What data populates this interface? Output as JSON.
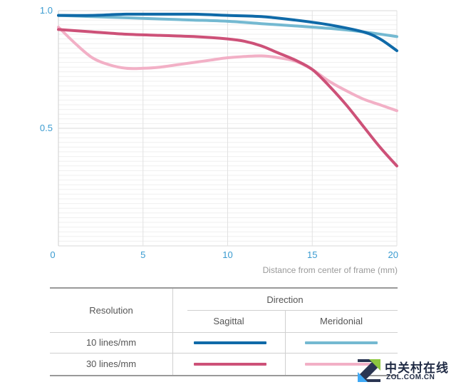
{
  "chart_data": {
    "type": "line",
    "xlabel": "Distance from center of frame (mm)",
    "xlim": [
      0,
      20
    ],
    "ylim": [
      0,
      1.0
    ],
    "x_ticks": [
      "0",
      "5",
      "10",
      "15",
      "20"
    ],
    "y_ticks": [
      "1.0",
      "0.5"
    ],
    "grid": true,
    "series": [
      {
        "name": "10 lines/mm Sagittal",
        "color": "#0f6aa8",
        "x": [
          0,
          2,
          4,
          6,
          8,
          10,
          12,
          14,
          16,
          18,
          19,
          20
        ],
        "y": [
          0.98,
          0.98,
          0.985,
          0.985,
          0.985,
          0.98,
          0.975,
          0.96,
          0.94,
          0.91,
          0.88,
          0.83
        ]
      },
      {
        "name": "10 lines/mm Meridonial",
        "color": "#74b9d1",
        "x": [
          0,
          2,
          4,
          6,
          8,
          10,
          12,
          14,
          16,
          18,
          20
        ],
        "y": [
          0.98,
          0.975,
          0.97,
          0.965,
          0.96,
          0.955,
          0.945,
          0.935,
          0.925,
          0.91,
          0.89
        ]
      },
      {
        "name": "30 lines/mm Sagittal",
        "color": "#cd5178",
        "x": [
          0,
          2,
          4,
          6,
          8,
          10,
          11,
          12,
          13,
          14,
          15,
          16,
          17,
          18,
          19,
          20
        ],
        "y": [
          0.92,
          0.91,
          0.9,
          0.895,
          0.89,
          0.88,
          0.87,
          0.85,
          0.82,
          0.79,
          0.75,
          0.68,
          0.6,
          0.51,
          0.42,
          0.34
        ]
      },
      {
        "name": "30 lines/mm Meridonial",
        "color": "#f2b0c6",
        "x": [
          0,
          1,
          2,
          3,
          4,
          5,
          6,
          7,
          8,
          9,
          10,
          11,
          12,
          13,
          14,
          15,
          16,
          17,
          18,
          19,
          20
        ],
        "y": [
          0.93,
          0.86,
          0.8,
          0.77,
          0.755,
          0.755,
          0.76,
          0.77,
          0.78,
          0.79,
          0.8,
          0.805,
          0.808,
          0.8,
          0.785,
          0.75,
          0.7,
          0.66,
          0.625,
          0.6,
          0.575
        ]
      }
    ]
  },
  "legend": {
    "resolution_header": "Resolution",
    "direction_header": "Direction",
    "sagittal_header": "Sagittal",
    "meridonial_header": "Meridonial",
    "rows": [
      {
        "label": "10 lines/mm",
        "sagittal_color": "#0f6aa8",
        "meridonial_color": "#74b9d1"
      },
      {
        "label": "30 lines/mm",
        "sagittal_color": "#cd5178",
        "meridonial_color": "#f2b0c6"
      }
    ]
  },
  "watermark": {
    "brand_cn": "中关村在线",
    "brand_en": "ZOL.COM.CN"
  }
}
